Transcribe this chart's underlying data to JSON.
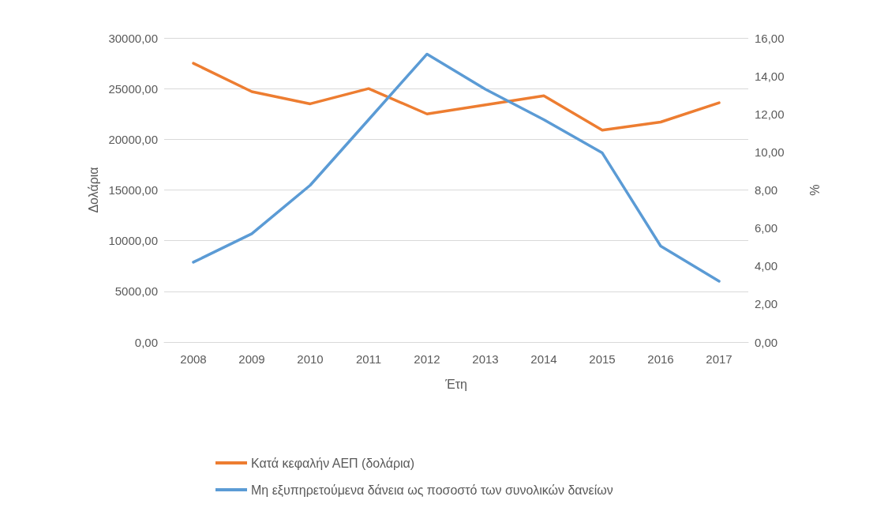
{
  "chart_data": {
    "type": "line",
    "xlabel": "Έτη",
    "ylabel": "Δολάρια",
    "y2label": "%",
    "categories": [
      "2008",
      "2009",
      "2010",
      "2011",
      "2012",
      "2013",
      "2014",
      "2015",
      "2016",
      "2017"
    ],
    "series": [
      {
        "name": "Κατά κεφαλήν ΑΕΠ (δολάρια)",
        "color": "#ed7d31",
        "values": [
          27500,
          24700,
          23500,
          25000,
          22500,
          23400,
          24300,
          20900,
          21700,
          23600
        ]
      },
      {
        "name": "Μη εξυπηρετούμενα δάνεια ως ποσοστό των συνολικών δανείων",
        "color": "#5b9bd5",
        "axis": "y2",
        "values": [
          4.2,
          5.7,
          8.25,
          11.7,
          15.15,
          13.3,
          11.7,
          9.95,
          5.05,
          3.2
        ]
      }
    ],
    "ylim": [
      0,
      30000
    ],
    "yticks": [
      {
        "value": 0,
        "label": "0,00"
      },
      {
        "value": 5000,
        "label": "5000,00"
      },
      {
        "value": 10000,
        "label": "10000,00"
      },
      {
        "value": 15000,
        "label": "15000,00"
      },
      {
        "value": 20000,
        "label": "20000,00"
      },
      {
        "value": 25000,
        "label": "25000,00"
      },
      {
        "value": 30000,
        "label": "30000,00"
      }
    ],
    "y2lim": [
      0,
      16
    ],
    "y2ticks": [
      {
        "value": 0,
        "label": "0,00"
      },
      {
        "value": 2,
        "label": "2,00"
      },
      {
        "value": 4,
        "label": "4,00"
      },
      {
        "value": 6,
        "label": "6,00"
      },
      {
        "value": 8,
        "label": "8,00"
      },
      {
        "value": 10,
        "label": "10,00"
      },
      {
        "value": 12,
        "label": "12,00"
      },
      {
        "value": 14,
        "label": "14,00"
      },
      {
        "value": 16,
        "label": "16,00"
      }
    ],
    "grid": "y",
    "legend": "bottom",
    "marker": "none",
    "line_style": "solid"
  }
}
